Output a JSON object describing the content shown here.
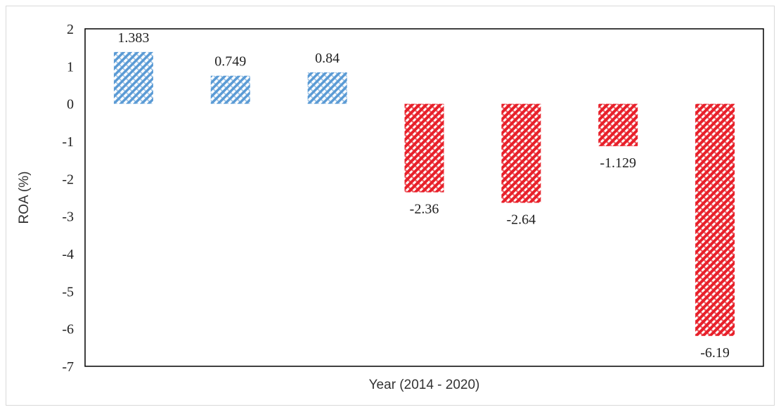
{
  "chart_data": {
    "type": "bar",
    "categories": [
      "",
      "",
      "",
      "",
      "",
      "",
      ""
    ],
    "values": [
      1.383,
      0.749,
      0.84,
      -2.36,
      -2.64,
      -1.129,
      -6.19
    ],
    "data_labels": [
      "1.383",
      "0.749",
      "0.84",
      "-2.36",
      "-2.64",
      "-1.129",
      "-6.19"
    ],
    "xlabel": "Year (2014 - 2020)",
    "ylabel": "ROA (%)",
    "ylim": [
      -7,
      2
    ],
    "yticks": [
      2,
      1,
      0,
      -1,
      -2,
      -3,
      -4,
      -5,
      -6,
      -7
    ],
    "grid": false,
    "legend": "none",
    "colors": {
      "positive": "#5b9bd5",
      "positive_light": "#ffffff",
      "negative": "#e8202a",
      "negative_light": "#ffffff",
      "axis": "#000000"
    }
  }
}
